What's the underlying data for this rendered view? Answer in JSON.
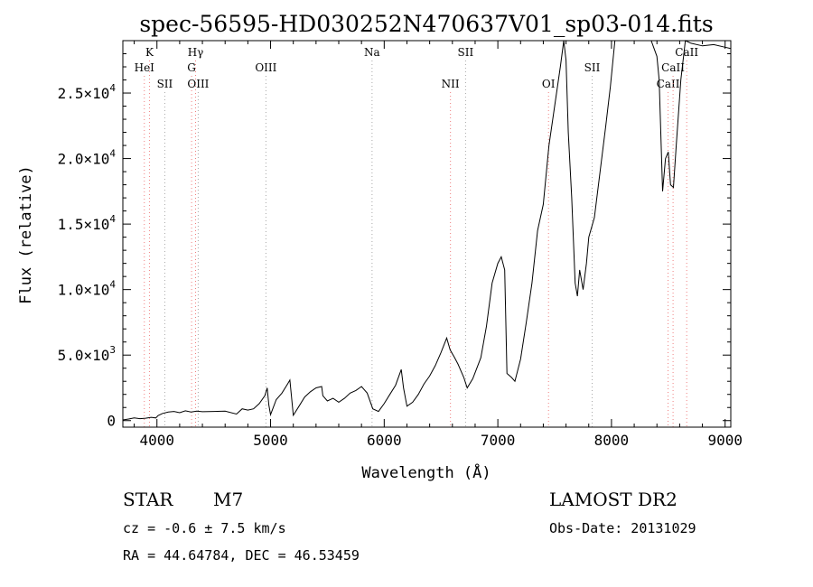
{
  "chart_data": {
    "type": "line",
    "title": "spec-56595-HD030252N470637V01_sp03-014.fits",
    "xlabel": "Wavelength (Å)",
    "ylabel": "Flux (relative)",
    "xlim": [
      3700,
      9050
    ],
    "ylim": [
      -500,
      29000
    ],
    "grid": false,
    "x_ticks": [
      {
        "value": 4000,
        "label": "4000"
      },
      {
        "value": 5000,
        "label": "5000"
      },
      {
        "value": 6000,
        "label": "6000"
      },
      {
        "value": 7000,
        "label": "7000"
      },
      {
        "value": 8000,
        "label": "8000"
      },
      {
        "value": 9000,
        "label": "9000"
      }
    ],
    "y_ticks": [
      {
        "value": 0,
        "label": "0"
      },
      {
        "value": 5000,
        "mant": "5.0×10",
        "exp": "3"
      },
      {
        "value": 10000,
        "mant": "1.0×10",
        "exp": "4"
      },
      {
        "value": 15000,
        "mant": "1.5×10",
        "exp": "4"
      },
      {
        "value": 20000,
        "mant": "2.0×10",
        "exp": "4"
      },
      {
        "value": 25000,
        "mant": "2.5×10",
        "exp": "4"
      }
    ],
    "spectral_lines": [
      {
        "label": "K",
        "wavelength": 3934,
        "row": 0,
        "color": "#f08080"
      },
      {
        "label": "HeI",
        "wavelength": 3889,
        "row": 1,
        "color": "#f08080"
      },
      {
        "label": "SII",
        "wavelength": 4069,
        "row": 2,
        "color": "#a8a8a8"
      },
      {
        "label": "Hγ",
        "wavelength": 4340,
        "row": 0,
        "color": "#f08080"
      },
      {
        "label": "G",
        "wavelength": 4305,
        "row": 1,
        "color": "#f08080"
      },
      {
        "label": "OIII",
        "wavelength": 4363,
        "row": 2,
        "color": "#a8a8a8"
      },
      {
        "label": "OIII",
        "wavelength": 4959,
        "row": 1,
        "color": "#a8a8a8"
      },
      {
        "label": "Na",
        "wavelength": 5893,
        "row": 0,
        "color": "#a8a8a8"
      },
      {
        "label": "NII",
        "wavelength": 6583,
        "row": 2,
        "color": "#f08080"
      },
      {
        "label": "SII",
        "wavelength": 6716,
        "row": 0,
        "color": "#a8a8a8"
      },
      {
        "label": "OI",
        "wavelength": 7446,
        "row": 2,
        "color": "#f08080"
      },
      {
        "label": "SII",
        "wavelength": 7830,
        "row": 1,
        "color": "#a8a8a8"
      },
      {
        "label": "CaII",
        "wavelength": 8498,
        "row": 2,
        "color": "#f08080"
      },
      {
        "label": "CaII",
        "wavelength": 8542,
        "row": 1,
        "color": "#f08080"
      },
      {
        "label": "CaII",
        "wavelength": 8662,
        "row": 0,
        "color": "#f08080"
      }
    ],
    "series": [
      {
        "color": "#000000",
        "points": [
          [
            3700,
            50
          ],
          [
            3750,
            120
          ],
          [
            3800,
            200
          ],
          [
            3850,
            150
          ],
          [
            3900,
            180
          ],
          [
            3950,
            250
          ],
          [
            3990,
            200
          ],
          [
            4010,
            380
          ],
          [
            4050,
            550
          ],
          [
            4100,
            650
          ],
          [
            4150,
            700
          ],
          [
            4200,
            600
          ],
          [
            4250,
            750
          ],
          [
            4300,
            650
          ],
          [
            4350,
            720
          ],
          [
            4400,
            680
          ],
          [
            4500,
            700
          ],
          [
            4600,
            720
          ],
          [
            4700,
            500
          ],
          [
            4750,
            900
          ],
          [
            4800,
            800
          ],
          [
            4850,
            900
          ],
          [
            4900,
            1300
          ],
          [
            4950,
            1900
          ],
          [
            4970,
            2500
          ],
          [
            4985,
            1200
          ],
          [
            5000,
            450
          ],
          [
            5050,
            1600
          ],
          [
            5100,
            2100
          ],
          [
            5150,
            2800
          ],
          [
            5170,
            3100
          ],
          [
            5200,
            400
          ],
          [
            5250,
            1100
          ],
          [
            5300,
            1800
          ],
          [
            5350,
            2200
          ],
          [
            5400,
            2500
          ],
          [
            5450,
            2600
          ],
          [
            5460,
            1900
          ],
          [
            5500,
            1500
          ],
          [
            5550,
            1700
          ],
          [
            5600,
            1400
          ],
          [
            5650,
            1700
          ],
          [
            5700,
            2100
          ],
          [
            5750,
            2300
          ],
          [
            5800,
            2600
          ],
          [
            5850,
            2100
          ],
          [
            5900,
            900
          ],
          [
            5950,
            700
          ],
          [
            6000,
            1300
          ],
          [
            6050,
            2000
          ],
          [
            6100,
            2700
          ],
          [
            6150,
            3900
          ],
          [
            6170,
            2500
          ],
          [
            6200,
            1100
          ],
          [
            6250,
            1400
          ],
          [
            6300,
            2000
          ],
          [
            6350,
            2800
          ],
          [
            6400,
            3400
          ],
          [
            6450,
            4200
          ],
          [
            6500,
            5200
          ],
          [
            6550,
            6300
          ],
          [
            6580,
            5400
          ],
          [
            6620,
            4800
          ],
          [
            6650,
            4300
          ],
          [
            6700,
            3300
          ],
          [
            6730,
            2500
          ],
          [
            6780,
            3200
          ],
          [
            6850,
            4800
          ],
          [
            6900,
            7200
          ],
          [
            6950,
            10500
          ],
          [
            7000,
            12000
          ],
          [
            7030,
            12500
          ],
          [
            7060,
            11500
          ],
          [
            7080,
            3600
          ],
          [
            7120,
            3300
          ],
          [
            7150,
            3000
          ],
          [
            7200,
            4700
          ],
          [
            7250,
            7500
          ],
          [
            7300,
            10500
          ],
          [
            7350,
            14500
          ],
          [
            7400,
            16500
          ],
          [
            7450,
            21000
          ],
          [
            7500,
            24000
          ],
          [
            7550,
            27000
          ],
          [
            7580,
            29000
          ],
          [
            7600,
            27500
          ],
          [
            7620,
            22000
          ],
          [
            7650,
            17000
          ],
          [
            7680,
            10500
          ],
          [
            7700,
            9500
          ],
          [
            7720,
            11500
          ],
          [
            7750,
            10000
          ],
          [
            7780,
            12000
          ],
          [
            7800,
            14000
          ],
          [
            7850,
            15500
          ],
          [
            7900,
            19000
          ],
          [
            7950,
            22500
          ],
          [
            7990,
            25500
          ],
          [
            8030,
            29000
          ],
          [
            8100,
            29000
          ],
          [
            8150,
            29000
          ],
          [
            8200,
            29000
          ],
          [
            8250,
            29000
          ],
          [
            8300,
            29000
          ],
          [
            8350,
            29000
          ],
          [
            8400,
            27800
          ],
          [
            8420,
            26000
          ],
          [
            8450,
            17500
          ],
          [
            8475,
            20000
          ],
          [
            8500,
            20500
          ],
          [
            8520,
            18000
          ],
          [
            8545,
            17800
          ],
          [
            8570,
            21000
          ],
          [
            8610,
            26000
          ],
          [
            8650,
            29000
          ],
          [
            8700,
            28800
          ],
          [
            8800,
            28600
          ],
          [
            8900,
            28700
          ],
          [
            9000,
            28500
          ],
          [
            9050,
            28400
          ]
        ]
      }
    ]
  },
  "info": {
    "object_type": "STAR",
    "subclass": "M7",
    "survey": "LAMOST DR2",
    "cz": "cz = -0.6 ± 7.5 km/s",
    "obs_date": "Obs-Date: 20131029",
    "coords": "RA =  44.64784, DEC =  46.53459"
  }
}
